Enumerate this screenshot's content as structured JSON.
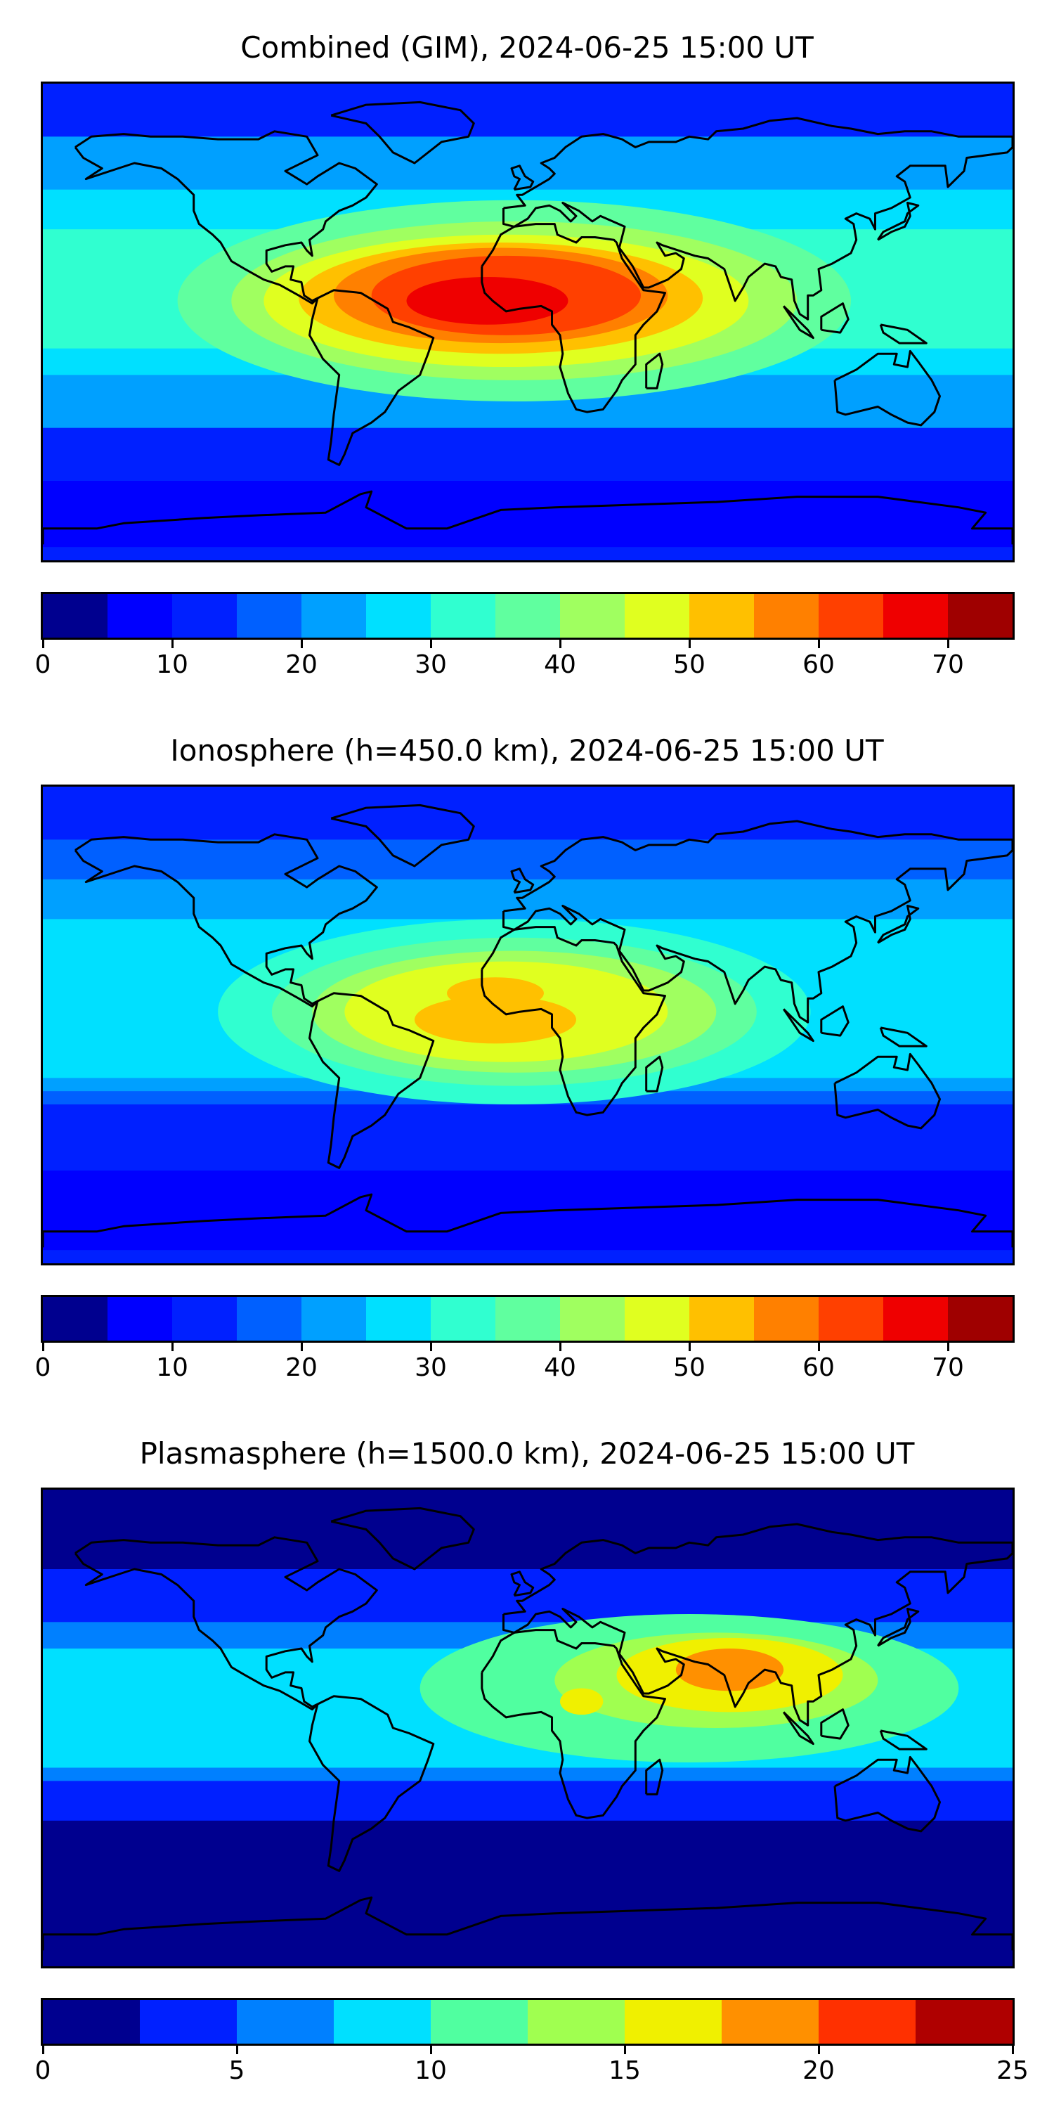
{
  "panels": [
    {
      "title": "Combined (GIM), 2024-06-25 15:00 UT",
      "colorbar": {
        "colors": [
          "#00008f",
          "#0000ff",
          "#0020ff",
          "#0060ff",
          "#00a0ff",
          "#00e0ff",
          "#30ffd0",
          "#60ff9f",
          "#a0ff60",
          "#e0ff20",
          "#ffc000",
          "#ff8000",
          "#ff4000",
          "#ef0000",
          "#9f0000"
        ],
        "ticks": [
          "0",
          "10",
          "20",
          "30",
          "40",
          "50",
          "60",
          "70"
        ],
        "range": [
          0,
          75
        ]
      },
      "blobs": [
        {
          "lon": -5,
          "lat": 8,
          "rx": 125,
          "ry": 38,
          "c": 7
        },
        {
          "lon": -5,
          "lat": 8,
          "rx": 105,
          "ry": 30,
          "c": 8
        },
        {
          "lon": -8,
          "lat": 8,
          "rx": 90,
          "ry": 25,
          "c": 9
        },
        {
          "lon": -10,
          "lat": 9,
          "rx": 75,
          "ry": 21,
          "c": 10
        },
        {
          "lon": -10,
          "lat": 10,
          "rx": 62,
          "ry": 18,
          "c": 11
        },
        {
          "lon": -8,
          "lat": 10,
          "rx": 50,
          "ry": 15,
          "c": 12
        },
        {
          "lon": -15,
          "lat": 8,
          "rx": 30,
          "ry": 9,
          "c": 13
        }
      ]
    },
    {
      "title": "Ionosphere  (h=450.0 km), 2024-06-25 15:00 UT",
      "colorbar": {
        "colors": [
          "#00008f",
          "#0000ff",
          "#0020ff",
          "#0060ff",
          "#00a0ff",
          "#00e0ff",
          "#30ffd0",
          "#60ff9f",
          "#a0ff60",
          "#e0ff20",
          "#ffc000",
          "#ff8000",
          "#ff4000",
          "#ef0000",
          "#9f0000"
        ],
        "ticks": [
          "0",
          "10",
          "20",
          "30",
          "40",
          "50",
          "60",
          "70"
        ],
        "range": [
          0,
          75
        ]
      },
      "blobs": [
        {
          "lon": -5,
          "lat": 5,
          "rx": 110,
          "ry": 35,
          "c": 6
        },
        {
          "lon": -5,
          "lat": 5,
          "rx": 90,
          "ry": 28,
          "c": 7
        },
        {
          "lon": -5,
          "lat": 5,
          "rx": 75,
          "ry": 23,
          "c": 8
        },
        {
          "lon": -8,
          "lat": 5,
          "rx": 60,
          "ry": 19,
          "c": 9
        },
        {
          "lon": -12,
          "lat": 2,
          "rx": 30,
          "ry": 9,
          "c": 10
        },
        {
          "lon": -12,
          "lat": 12,
          "rx": 18,
          "ry": 6,
          "c": 10
        }
      ]
    },
    {
      "title": "Plasmasphere (h=1500.0 km), 2024-06-25 15:00 UT",
      "colorbar": {
        "colors": [
          "#00008f",
          "#0020ff",
          "#0080ff",
          "#00e0ff",
          "#50ffa0",
          "#a0ff50",
          "#f0f000",
          "#ff9000",
          "#ff3000",
          "#af0000"
        ],
        "ticks": [
          "0",
          "5",
          "10",
          "15",
          "20",
          "25"
        ],
        "range": [
          0,
          25
        ]
      },
      "blobs": [
        {
          "lon": 60,
          "lat": 15,
          "rx": 100,
          "ry": 28,
          "c": 4
        },
        {
          "lon": 70,
          "lat": 18,
          "rx": 60,
          "ry": 18,
          "c": 5
        },
        {
          "lon": 75,
          "lat": 20,
          "rx": 42,
          "ry": 14,
          "c": 6
        },
        {
          "lon": 75,
          "lat": 22,
          "rx": 20,
          "ry": 8,
          "c": 7
        },
        {
          "lon": 20,
          "lat": 10,
          "rx": 8,
          "ry": 5,
          "c": 6
        }
      ]
    }
  ]
}
